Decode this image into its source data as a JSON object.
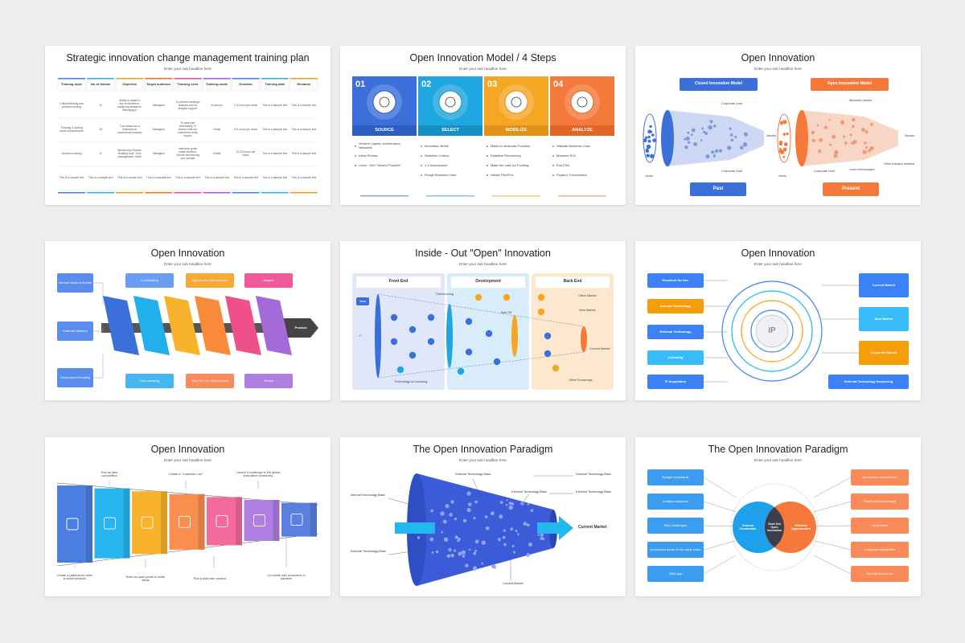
{
  "slides": [
    {
      "title": "Strategic innovation change management training plan",
      "subtitle": "Enter your sub headline here",
      "table": {
        "headers": [
          "Training topic",
          "No of trainee",
          "Objective",
          "Target audience",
          "Training need",
          "Training mode",
          "Duration",
          "Training date",
          "Remarks"
        ],
        "rows": [
          [
            "Critical thinking and problem solving",
            "22",
            "Ability to adapt to the environment, Analyzing situations, Managing it",
            "Managers",
            "To perform strategic analysis and To analyse support",
            "In person",
            "2-3 hours per week",
            "This is a sample text",
            "This is a sample text"
          ],
          [
            "Thinking & adding future competences",
            "18",
            "Turn ideas into a business for commercial success",
            "Managers",
            "To deal with uncertainty, To review what our customers really expect",
            "Virtual",
            "5-8 hours per week",
            "This is a sample text",
            "This is a sample text"
          ],
          [
            "Decision making",
            "11",
            "Introducing Process, Building trust, Time management, Work",
            "Managers",
            "Individual goals make decision, Decide well among your people",
            "Virtual",
            "12-18 hours per week",
            "This is a sample text",
            "This is a sample text"
          ],
          [
            "This is a sample text",
            "This is a sample text",
            "This is a sample text",
            "This is a sample text",
            "This is a sample text",
            "This is a sample text",
            "This is a sample text",
            "This is a sample text",
            "This is a sample text"
          ]
        ]
      }
    },
    {
      "title": "Open Innovation Model / 4 Steps",
      "subtitle": "Enter your sub headline here",
      "steps": [
        {
          "number": "01",
          "name": "SOURCE",
          "bullets": [
            "Venture Capital, Accelerators, Networks",
            "Initial Review",
            "Learn / See \"What's Possible\""
          ]
        },
        {
          "number": "02",
          "name": "SELECT",
          "bullets": [
            "Innovation Briefs",
            "Selection Criteria",
            "1-1 Assessment",
            "Rough Business Case"
          ]
        },
        {
          "number": "03",
          "name": "MOBILIZE",
          "bullets": [
            "Match to Business Function",
            "Establish Resourcing",
            "Make the case for Funding",
            "Initiate Pilot/Poc"
          ]
        },
        {
          "number": "04",
          "name": "ANALYZE",
          "bullets": [
            "Validate Business Case",
            "Measure ROI",
            "End Pilot",
            "Expand, if successful"
          ]
        }
      ]
    },
    {
      "title": "Open Innovation",
      "subtitle": "Enter your sub headline here",
      "labels": [
        "Closed Innovation Model",
        "Open Innovation Model",
        "Corporate Limit",
        "Corporate Limit",
        "Ideas",
        "Market",
        "Past",
        "Ideas",
        "Market",
        "Corporate Limit",
        "Attractive market",
        "Licen technologies",
        "Other industry markets",
        "Present"
      ]
    },
    {
      "title": "Open Innovation",
      "subtitle": "Enter your sub headline here",
      "labels": [
        "Internal Ideas & Assets",
        "External Network",
        "Government Funding",
        "In-Licensing",
        "Spin-In the Joint-Venture",
        "Acquire",
        "Out-Licensing",
        "Spin-Out via Joint-Venture",
        "Divest",
        "Product"
      ]
    },
    {
      "title": "Inside - Out \"Open\" Innovation",
      "subtitle": "Enter your sub headline here",
      "labels": [
        "Front End",
        "Development",
        "Back End",
        "Ideas",
        "IP",
        "Out-licensing",
        "Spin Off",
        "Other Market",
        "New Market",
        "Current Market",
        "Technology In-Licensing",
        "IP",
        "Other Knowledge"
      ]
    },
    {
      "title": "Open Innovation",
      "subtitle": "Enter your sub headline here",
      "labels": [
        "Research for hire",
        "Internal Technology",
        "External Technology",
        "Licensing",
        "IP Acquisition",
        "Current Market",
        "New Market",
        "Corporate Market",
        "External Technology Insourcing",
        "IP"
      ]
    },
    {
      "title": "Open Innovation",
      "subtitle": "Enter your sub headline here",
      "labels": [
        "Run an idea competition",
        "Create a \"Customer Lab\"",
        "Launch a challenge to the global innovation community",
        "Create a platform for other to build solutions",
        "Build an open portal to invite ideas",
        "Run a lead user product",
        "Co-create with customers or partners"
      ]
    },
    {
      "title": "The Open Innovation Paradigm",
      "subtitle": "Enter your sub headline here",
      "labels": [
        "Internal Technology Base",
        "External Technology Base",
        "External Technology Base",
        "External Technology Base",
        "External Technology Base",
        "External Technology Base",
        "Current Market",
        "Current Market"
      ]
    },
    {
      "title": "The Open Innovation Paradigm",
      "subtitle": "Enter your sub headline here",
      "labels": [
        "Budget constraints",
        "Limited resources",
        "R&D challenges",
        "Uncovered areas of the value chain",
        "Skills gap",
        "Internal Constraints",
        "Seek Out Open Innovation",
        "External Opportunities",
        "Accessible communities",
        "Distributed knowledge",
        "Great ideas",
        "Untapped capabilities",
        "Specific know-how"
      ]
    }
  ]
}
